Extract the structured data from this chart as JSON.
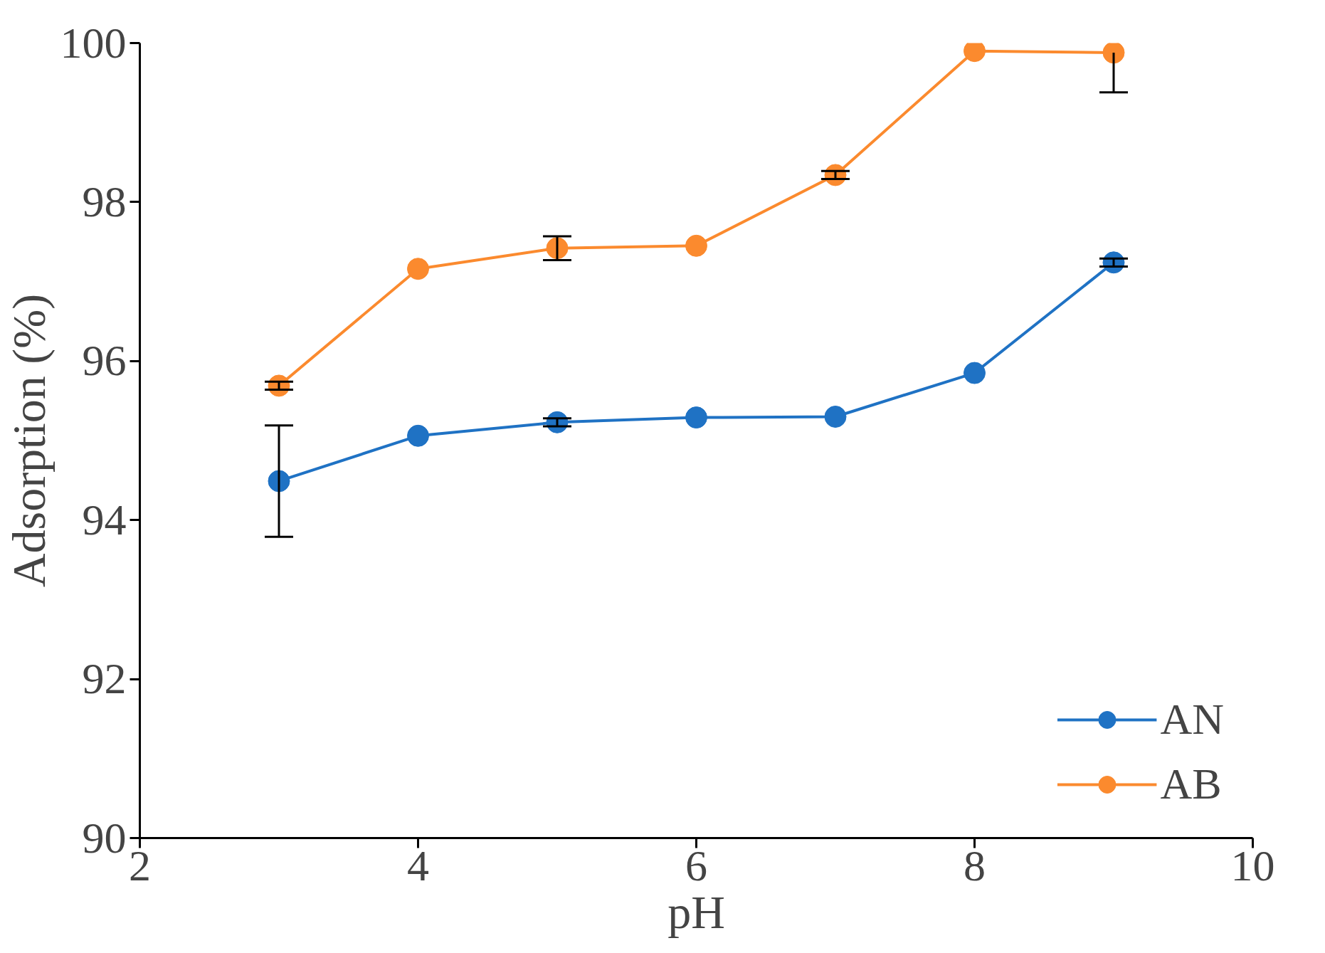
{
  "chart_data": {
    "type": "line",
    "xlabel": "pH",
    "ylabel": "Adsorption (%)",
    "x": [
      3,
      4,
      5,
      6,
      7,
      8,
      9
    ],
    "series": [
      {
        "name": "AN",
        "color": "#1f72c4",
        "values": [
          94.49,
          95.06,
          95.23,
          95.29,
          95.3,
          95.85,
          97.24
        ],
        "errors": [
          0.7,
          null,
          0.05,
          null,
          null,
          null,
          0.05
        ]
      },
      {
        "name": "AB",
        "color": "#fb8a2e",
        "values": [
          95.69,
          97.16,
          97.42,
          97.45,
          98.34,
          99.9,
          99.88
        ],
        "errors": [
          0.05,
          null,
          0.15,
          null,
          0.05,
          null,
          [
            99.38,
            99.88
          ]
        ]
      }
    ],
    "xlim": [
      2,
      10
    ],
    "xticks": [
      2,
      4,
      6,
      8,
      10
    ],
    "ylim": [
      90,
      100
    ],
    "yticks": [
      90,
      92,
      94,
      96,
      98,
      100
    ],
    "grid": false,
    "legend": "bottom right",
    "marker": "circle",
    "line_style": "solid"
  }
}
